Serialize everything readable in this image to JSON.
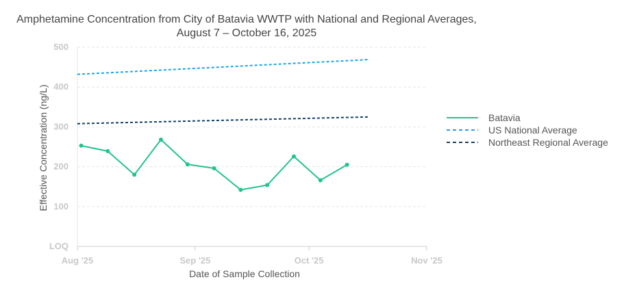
{
  "chart_data": {
    "type": "line",
    "title_lines": [
      "Amphetamine Concentration from City of Batavia WWTP with National and Regional Averages,",
      "August 7 – October 16, 2025"
    ],
    "xlabel": "Date of Sample Collection",
    "ylabel": "Effective Concentration (ng/L)",
    "ylim": [
      0,
      500
    ],
    "yticks": [
      {
        "value": 0,
        "label": "LOQ"
      },
      {
        "value": 100,
        "label": "100"
      },
      {
        "value": 200,
        "label": "200"
      },
      {
        "value": 300,
        "label": "300"
      },
      {
        "value": 400,
        "label": "400"
      },
      {
        "value": 500,
        "label": "500"
      }
    ],
    "xlim_day": [
      0,
      92
    ],
    "xticks": [
      {
        "day": 0,
        "label": "Aug '25"
      },
      {
        "day": 31,
        "label": "Sep '25"
      },
      {
        "day": 61,
        "label": "Oct '25"
      },
      {
        "day": 92,
        "label": "Nov '25"
      }
    ],
    "series": [
      {
        "name": "Batavia",
        "color": "#22c38e",
        "style": "solid",
        "markers": true,
        "points": [
          {
            "day": 1,
            "value": 253
          },
          {
            "day": 8,
            "value": 239
          },
          {
            "day": 15,
            "value": 180
          },
          {
            "day": 22,
            "value": 268
          },
          {
            "day": 29,
            "value": 206
          },
          {
            "day": 36,
            "value": 196
          },
          {
            "day": 43,
            "value": 142
          },
          {
            "day": 50,
            "value": 154
          },
          {
            "day": 57,
            "value": 226
          },
          {
            "day": 64,
            "value": 166
          },
          {
            "day": 71,
            "value": 205
          }
        ]
      },
      {
        "name": "US National Average",
        "color": "#1aa3e8",
        "style": "dashed",
        "markers": false,
        "points": [
          {
            "day": 0,
            "value": 432
          },
          {
            "day": 77,
            "value": 469
          }
        ]
      },
      {
        "name": "Northeast Regional Average",
        "color": "#0f3d6b",
        "style": "dashed",
        "markers": false,
        "points": [
          {
            "day": 0,
            "value": 308
          },
          {
            "day": 77,
            "value": 325
          }
        ]
      }
    ],
    "legend_position": "right"
  }
}
